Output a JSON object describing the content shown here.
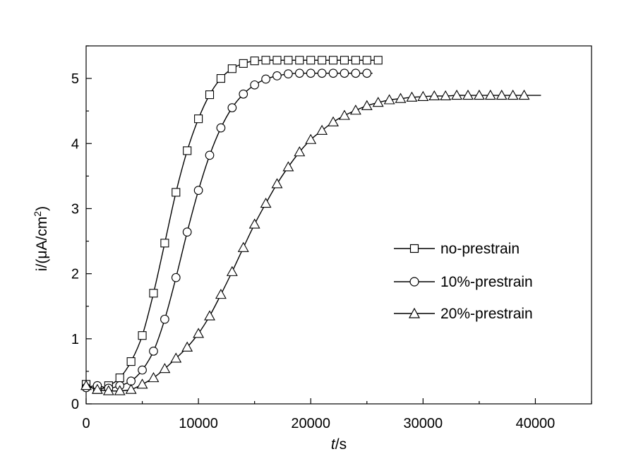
{
  "chart_data": {
    "type": "line",
    "xlabel_italic": "t",
    "xlabel_rest": "/s",
    "ylabel_main": "i/(μA/cm",
    "ylabel_sup": "2",
    "ylabel_end": ")",
    "xlim": [
      0,
      45000
    ],
    "ylim": [
      0,
      5.5
    ],
    "xticks": [
      0,
      10000,
      20000,
      30000,
      40000
    ],
    "yticks": [
      0,
      1,
      2,
      3,
      4,
      5
    ],
    "xtick_labels": [
      "0",
      "10000",
      "20000",
      "30000",
      "40000"
    ],
    "ytick_labels": [
      "0",
      "1",
      "2",
      "3",
      "4",
      "5"
    ],
    "legend_position": "center-right",
    "series": [
      {
        "name": "no-prestrain",
        "marker": "square",
        "x": [
          0,
          1000,
          2000,
          3000,
          4000,
          5000,
          6000,
          7000,
          8000,
          9000,
          10000,
          11000,
          12000,
          13000,
          14000,
          15000,
          16000,
          17000,
          18000,
          19000,
          20000,
          21000,
          22000,
          23000,
          24000,
          25000,
          26000
        ],
        "y": [
          0.3,
          0.22,
          0.28,
          0.4,
          0.65,
          1.05,
          1.7,
          2.47,
          3.25,
          3.89,
          4.38,
          4.75,
          5.0,
          5.15,
          5.23,
          5.27,
          5.28,
          5.28,
          5.28,
          5.28,
          5.28,
          5.28,
          5.28,
          5.28,
          5.28,
          5.28,
          5.28
        ]
      },
      {
        "name": "10%-prestrain",
        "marker": "circle",
        "x": [
          0,
          1000,
          2000,
          3000,
          4000,
          5000,
          6000,
          7000,
          8000,
          9000,
          10000,
          11000,
          12000,
          13000,
          14000,
          15000,
          16000,
          17000,
          18000,
          19000,
          20000,
          21000,
          22000,
          23000,
          24000,
          25000
        ],
        "y": [
          0.25,
          0.28,
          0.24,
          0.28,
          0.35,
          0.52,
          0.81,
          1.3,
          1.94,
          2.64,
          3.28,
          3.82,
          4.24,
          4.55,
          4.76,
          4.9,
          4.99,
          5.04,
          5.07,
          5.08,
          5.08,
          5.08,
          5.08,
          5.08,
          5.08,
          5.08
        ]
      },
      {
        "name": "20%-prestrain",
        "marker": "triangle",
        "x": [
          0,
          1000,
          2000,
          3000,
          4000,
          5000,
          6000,
          7000,
          8000,
          9000,
          10000,
          11000,
          12000,
          13000,
          14000,
          15000,
          16000,
          17000,
          18000,
          19000,
          20000,
          21000,
          22000,
          23000,
          24000,
          25000,
          26000,
          27000,
          28000,
          29000,
          30000,
          31000,
          32000,
          33000,
          34000,
          35000,
          36000,
          37000,
          38000,
          39000
        ],
        "y": [
          0.28,
          0.22,
          0.2,
          0.2,
          0.22,
          0.3,
          0.4,
          0.54,
          0.7,
          0.87,
          1.08,
          1.35,
          1.68,
          2.03,
          2.4,
          2.76,
          3.08,
          3.38,
          3.64,
          3.87,
          4.06,
          4.2,
          4.33,
          4.43,
          4.51,
          4.58,
          4.63,
          4.67,
          4.69,
          4.71,
          4.72,
          4.73,
          4.73,
          4.74,
          4.74,
          4.74,
          4.74,
          4.74,
          4.74,
          4.74
        ]
      }
    ],
    "series_line_end_x": [
      26000,
      25500,
      40500
    ]
  }
}
